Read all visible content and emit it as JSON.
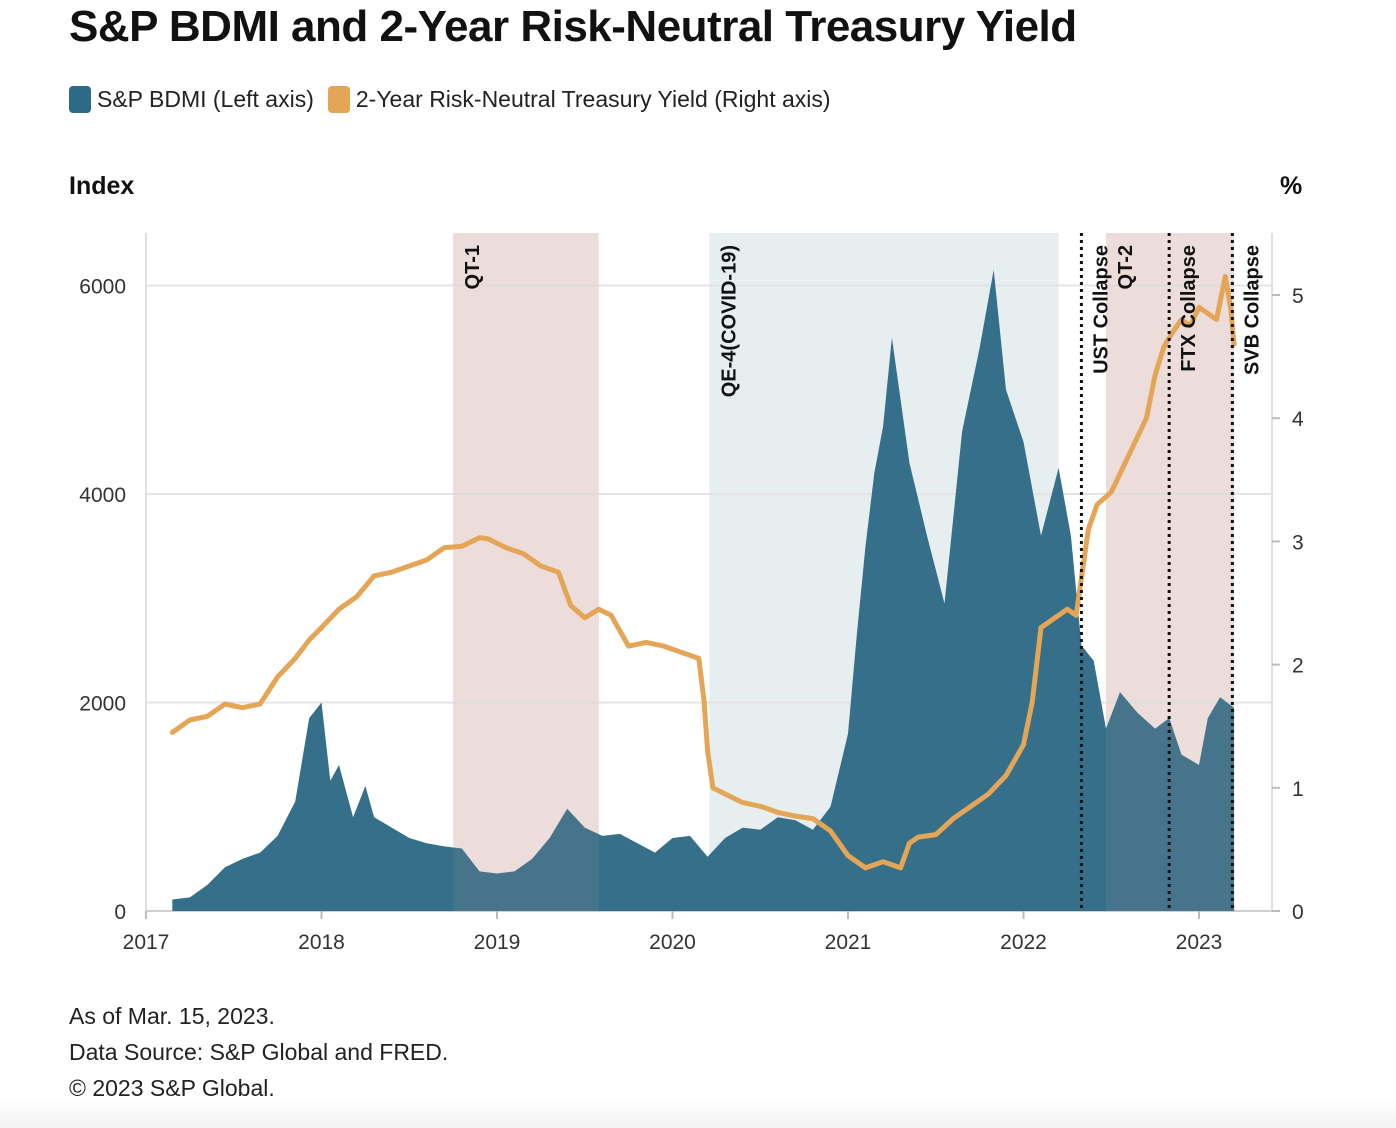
{
  "title": "S&P BDMI and 2-Year Risk-Neutral Treasury Yield",
  "legend": [
    {
      "label": "S&P BDMI (Left axis)",
      "color": "#2e6a86"
    },
    {
      "label": "2-Year Risk-Neutral Treasury Yield (Right axis)",
      "color": "#e4a556"
    }
  ],
  "axis_titles": {
    "left": "Index",
    "right": "%"
  },
  "footer": {
    "line1": "As of Mar. 15, 2023.",
    "line2": "Data Source: S&P Global and FRED.",
    "line3": "© 2023 S&P Global."
  },
  "chart_data": {
    "type": "area",
    "title": "S&P BDMI and 2-Year Risk-Neutral Treasury Yield",
    "x_range": [
      2017.0,
      2023.55
    ],
    "x_ticks": [
      "2017",
      "2018",
      "2019",
      "2020",
      "2021",
      "2022",
      "2023"
    ],
    "y_left": {
      "label": "Index",
      "range": [
        0,
        6500
      ],
      "ticks": [
        "0",
        "2000",
        "4000",
        "6000"
      ]
    },
    "y_right": {
      "label": "%",
      "range": [
        0,
        5.5
      ],
      "ticks": [
        "0",
        "1",
        "2",
        "3",
        "4",
        "5"
      ]
    },
    "grid": true,
    "legend_position": "top-left",
    "shaded_periods": [
      {
        "label": "QT-1",
        "start": 2018.75,
        "end": 2019.58,
        "color": "#f2e5e3"
      },
      {
        "label": "QE-4(COVID-19)",
        "start": 2020.21,
        "end": 2022.2,
        "color": "#e6eef0"
      },
      {
        "label": "QT-2",
        "start": 2022.47,
        "end": 2023.2,
        "color": "#f2e5e3"
      }
    ],
    "events": [
      {
        "label": "UST Collapse",
        "x": 2022.33
      },
      {
        "label": "FTX Collapse",
        "x": 2022.83
      },
      {
        "label": "SVB Collapse",
        "x": 2023.19
      }
    ],
    "series": [
      {
        "name": "S&P BDMI (Left axis)",
        "axis": "left",
        "color": "#2e6a86",
        "style": "area",
        "x": [
          2017.15,
          2017.25,
          2017.35,
          2017.45,
          2017.55,
          2017.65,
          2017.75,
          2017.85,
          2017.93,
          2018.0,
          2018.05,
          2018.1,
          2018.18,
          2018.25,
          2018.3,
          2018.4,
          2018.5,
          2018.6,
          2018.7,
          2018.8,
          2018.9,
          2019.0,
          2019.1,
          2019.2,
          2019.3,
          2019.4,
          2019.5,
          2019.6,
          2019.7,
          2019.8,
          2019.9,
          2020.0,
          2020.1,
          2020.2,
          2020.3,
          2020.4,
          2020.5,
          2020.6,
          2020.7,
          2020.8,
          2020.9,
          2021.0,
          2021.05,
          2021.1,
          2021.15,
          2021.2,
          2021.25,
          2021.35,
          2021.45,
          2021.55,
          2021.65,
          2021.75,
          2021.83,
          2021.9,
          2022.0,
          2022.1,
          2022.2,
          2022.27,
          2022.33,
          2022.4,
          2022.47,
          2022.55,
          2022.65,
          2022.75,
          2022.83,
          2022.9,
          2023.0,
          2023.05,
          2023.12,
          2023.2
        ],
        "values": [
          110,
          130,
          250,
          420,
          500,
          560,
          720,
          1050,
          1850,
          2000,
          1250,
          1400,
          900,
          1200,
          900,
          800,
          700,
          650,
          620,
          600,
          380,
          360,
          380,
          500,
          700,
          980,
          800,
          720,
          740,
          650,
          560,
          700,
          720,
          520,
          700,
          800,
          780,
          900,
          870,
          780,
          1000,
          1700,
          2650,
          3500,
          4200,
          4650,
          5500,
          4300,
          3600,
          2950,
          4600,
          5400,
          6150,
          5000,
          4500,
          3600,
          4250,
          3600,
          2550,
          2400,
          1750,
          2100,
          1900,
          1750,
          1850,
          1500,
          1400,
          1850,
          2050,
          1950
        ]
      },
      {
        "name": "2-Year Risk-Neutral Treasury Yield (Right axis)",
        "axis": "right",
        "color": "#e4a556",
        "style": "line",
        "x": [
          2017.15,
          2017.25,
          2017.35,
          2017.45,
          2017.55,
          2017.65,
          2017.75,
          2017.85,
          2017.93,
          2018.0,
          2018.1,
          2018.2,
          2018.3,
          2018.4,
          2018.5,
          2018.6,
          2018.7,
          2018.8,
          2018.9,
          2018.95,
          2019.05,
          2019.15,
          2019.25,
          2019.35,
          2019.42,
          2019.5,
          2019.58,
          2019.65,
          2019.75,
          2019.85,
          2019.95,
          2020.05,
          2020.15,
          2020.18,
          2020.2,
          2020.23,
          2020.3,
          2020.4,
          2020.5,
          2020.6,
          2020.7,
          2020.8,
          2020.9,
          2021.0,
          2021.1,
          2021.2,
          2021.3,
          2021.35,
          2021.4,
          2021.5,
          2021.6,
          2021.7,
          2021.8,
          2021.9,
          2022.0,
          2022.05,
          2022.1,
          2022.2,
          2022.25,
          2022.3,
          2022.37,
          2022.42,
          2022.5,
          2022.6,
          2022.7,
          2022.75,
          2022.8,
          2022.85,
          2022.9,
          2022.95,
          2023.0,
          2023.05,
          2023.1,
          2023.15,
          2023.18,
          2023.2
        ],
        "values": [
          1.45,
          1.55,
          1.58,
          1.68,
          1.65,
          1.68,
          1.9,
          2.05,
          2.2,
          2.3,
          2.45,
          2.55,
          2.72,
          2.75,
          2.8,
          2.85,
          2.95,
          2.96,
          3.03,
          3.02,
          2.95,
          2.9,
          2.8,
          2.75,
          2.48,
          2.38,
          2.45,
          2.4,
          2.15,
          2.18,
          2.15,
          2.1,
          2.05,
          1.7,
          1.3,
          1.0,
          0.95,
          0.88,
          0.85,
          0.8,
          0.77,
          0.75,
          0.65,
          0.45,
          0.35,
          0.4,
          0.35,
          0.55,
          0.6,
          0.62,
          0.75,
          0.85,
          0.95,
          1.1,
          1.35,
          1.7,
          2.3,
          2.4,
          2.45,
          2.4,
          3.1,
          3.3,
          3.4,
          3.7,
          4.0,
          4.35,
          4.58,
          4.7,
          4.8,
          4.75,
          4.9,
          4.85,
          4.8,
          5.15,
          4.9,
          4.6
        ]
      }
    ]
  }
}
